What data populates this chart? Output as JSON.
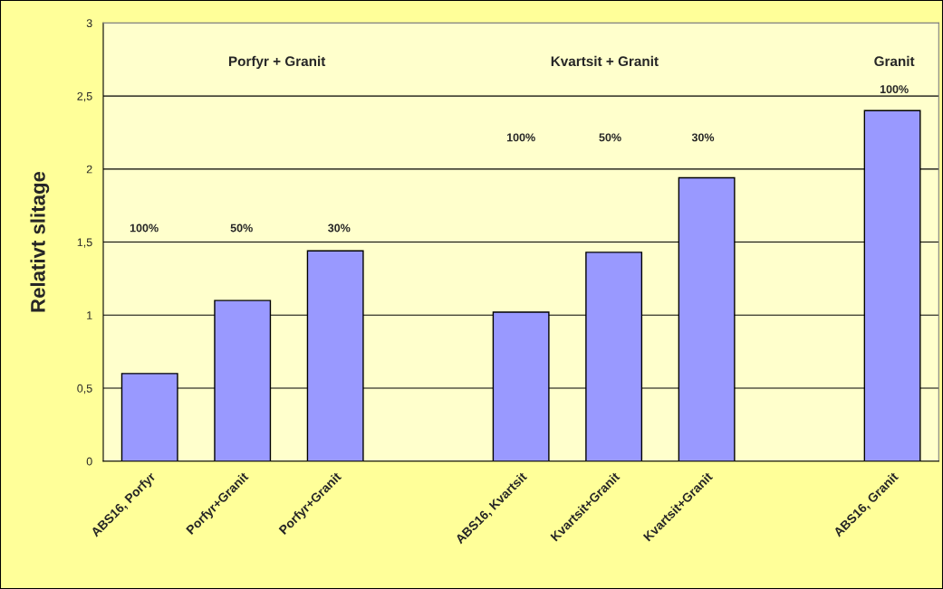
{
  "chart_data": {
    "type": "bar",
    "ylabel": "Relativt slitage",
    "categories": [
      "ABS16, Porfyr",
      "Porfyr+Granit",
      "Porfyr+Granit",
      null,
      "ABS16, Kvartsit",
      "Kvartsit+Granit",
      "Kvartsit+Granit",
      null,
      "ABS16, Granit"
    ],
    "values": [
      0.6,
      1.1,
      1.44,
      null,
      1.02,
      1.43,
      1.94,
      null,
      2.4
    ],
    "color": "#9999ff",
    "ylim": [
      0,
      3
    ],
    "yticks": [
      0,
      {
        "value": 0.5,
        "label": "0,5"
      },
      1,
      {
        "value": 1.5,
        "label": "1,5"
      },
      2,
      {
        "value": 2.5,
        "label": "2,5"
      },
      3
    ],
    "grid": "y",
    "annotations": [
      "Porfyr + Granit",
      "100%",
      "50%",
      "30%",
      "Kvartsit + Granit",
      "100%",
      "50%",
      "30%",
      "Granit",
      "100%"
    ]
  }
}
